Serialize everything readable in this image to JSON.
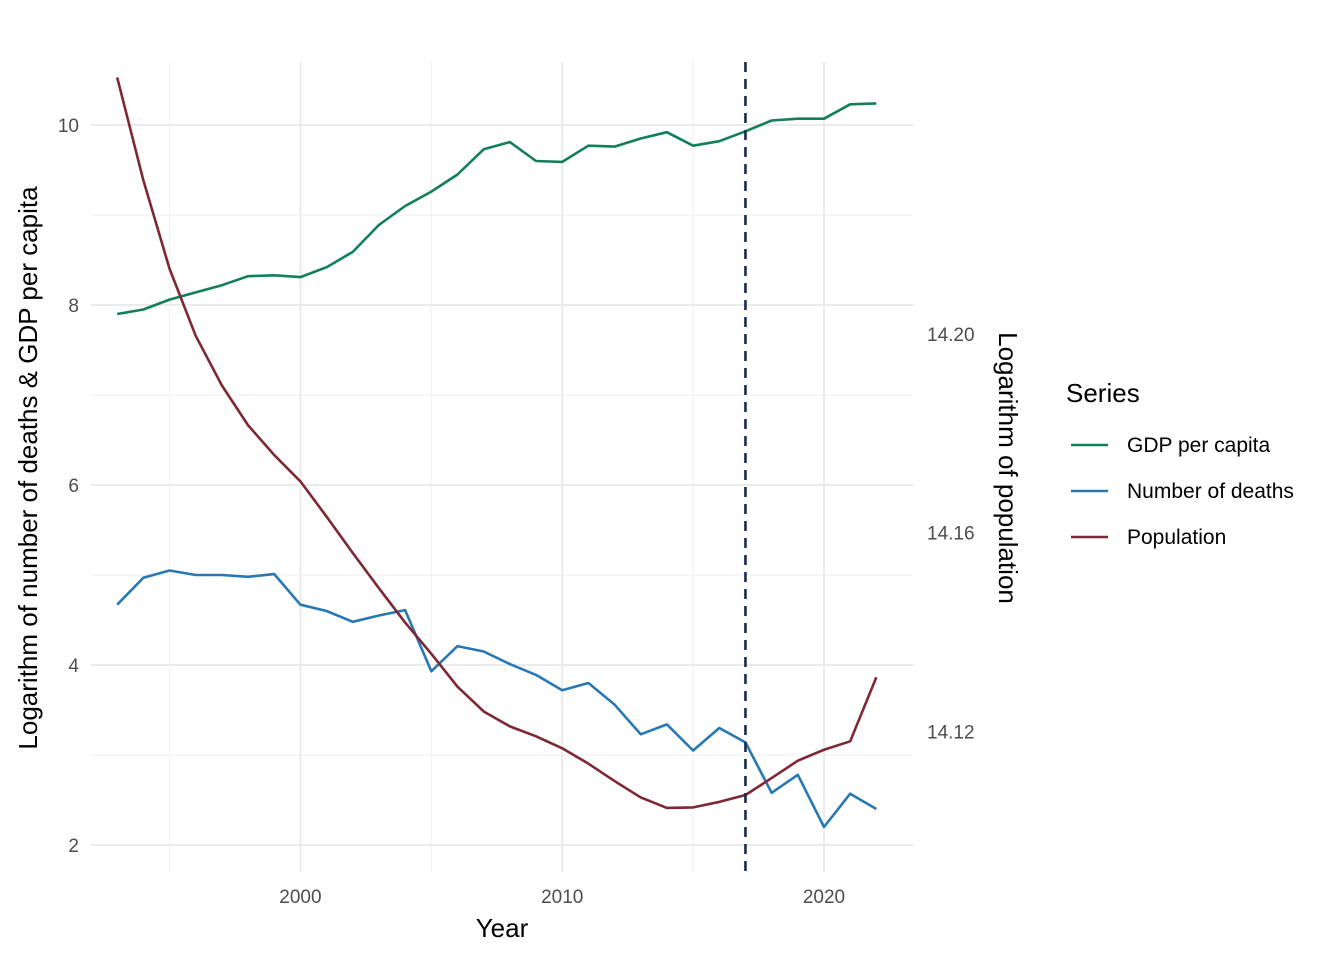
{
  "chart_data": {
    "type": "line",
    "xlabel": "Year",
    "ylabel_left": "Logarithm of number of deaths & GDP per capita",
    "ylabel_right": "Logarithm of population",
    "x_ticks": [
      2000,
      2010,
      2020
    ],
    "x_tick_labels": [
      "2000",
      "2010",
      "2020"
    ],
    "xlim": [
      1992,
      2023.4
    ],
    "ylim_left": [
      1.7,
      10.7
    ],
    "y_ticks_left": [
      2,
      4,
      6,
      8,
      10
    ],
    "y_tick_labels_left": [
      "2",
      "4",
      "6",
      "8",
      "10"
    ],
    "ylim_right": [
      14.0917,
      14.2547
    ],
    "y_ticks_right": [
      14.12,
      14.16,
      14.2
    ],
    "y_tick_labels_right": [
      "14.12",
      "14.16",
      "14.20"
    ],
    "grid": true,
    "legend": {
      "title": "Series",
      "position": "right"
    },
    "vline": {
      "x": 2017,
      "style": "dashed",
      "color": "#1b2a52"
    },
    "x": [
      1993,
      1994,
      1995,
      1996,
      1997,
      1998,
      1999,
      2000,
      2001,
      2002,
      2003,
      2004,
      2005,
      2006,
      2007,
      2008,
      2009,
      2010,
      2011,
      2012,
      2013,
      2014,
      2015,
      2016,
      2017,
      2018,
      2019,
      2020,
      2021,
      2022
    ],
    "series": [
      {
        "name": "GDP per capita",
        "axis": "left",
        "color": "#11805a",
        "values": [
          7.9,
          7.95,
          8.06,
          8.14,
          8.22,
          8.32,
          8.33,
          8.31,
          8.42,
          8.59,
          8.89,
          9.1,
          9.26,
          9.45,
          9.73,
          9.81,
          9.6,
          9.59,
          9.77,
          9.76,
          9.85,
          9.92,
          9.77,
          9.82,
          9.93,
          10.05,
          10.07,
          10.07,
          10.23,
          10.24
        ]
      },
      {
        "name": "Number of deaths",
        "axis": "left",
        "color": "#2878b4",
        "values": [
          4.67,
          4.97,
          5.05,
          5.0,
          5.0,
          4.98,
          5.01,
          4.67,
          4.6,
          4.48,
          4.55,
          4.61,
          3.93,
          4.21,
          4.15,
          4.01,
          3.89,
          3.72,
          3.8,
          3.56,
          3.23,
          3.34,
          3.05,
          3.3,
          3.14,
          2.58,
          2.78,
          2.2,
          2.57,
          2.4
        ]
      },
      {
        "name": "Population",
        "axis": "right",
        "color": "#7d2832",
        "values": [
          14.2516,
          14.2309,
          14.2131,
          14.1996,
          14.1896,
          14.1816,
          14.1756,
          14.1703,
          14.1632,
          14.1559,
          14.1488,
          14.1419,
          14.1356,
          14.129,
          14.124,
          14.121,
          14.119,
          14.1166,
          14.1135,
          14.11,
          14.1067,
          14.1046,
          14.1047,
          14.1058,
          14.1072,
          14.1106,
          14.1141,
          14.1163,
          14.118,
          14.1309
        ]
      }
    ]
  }
}
